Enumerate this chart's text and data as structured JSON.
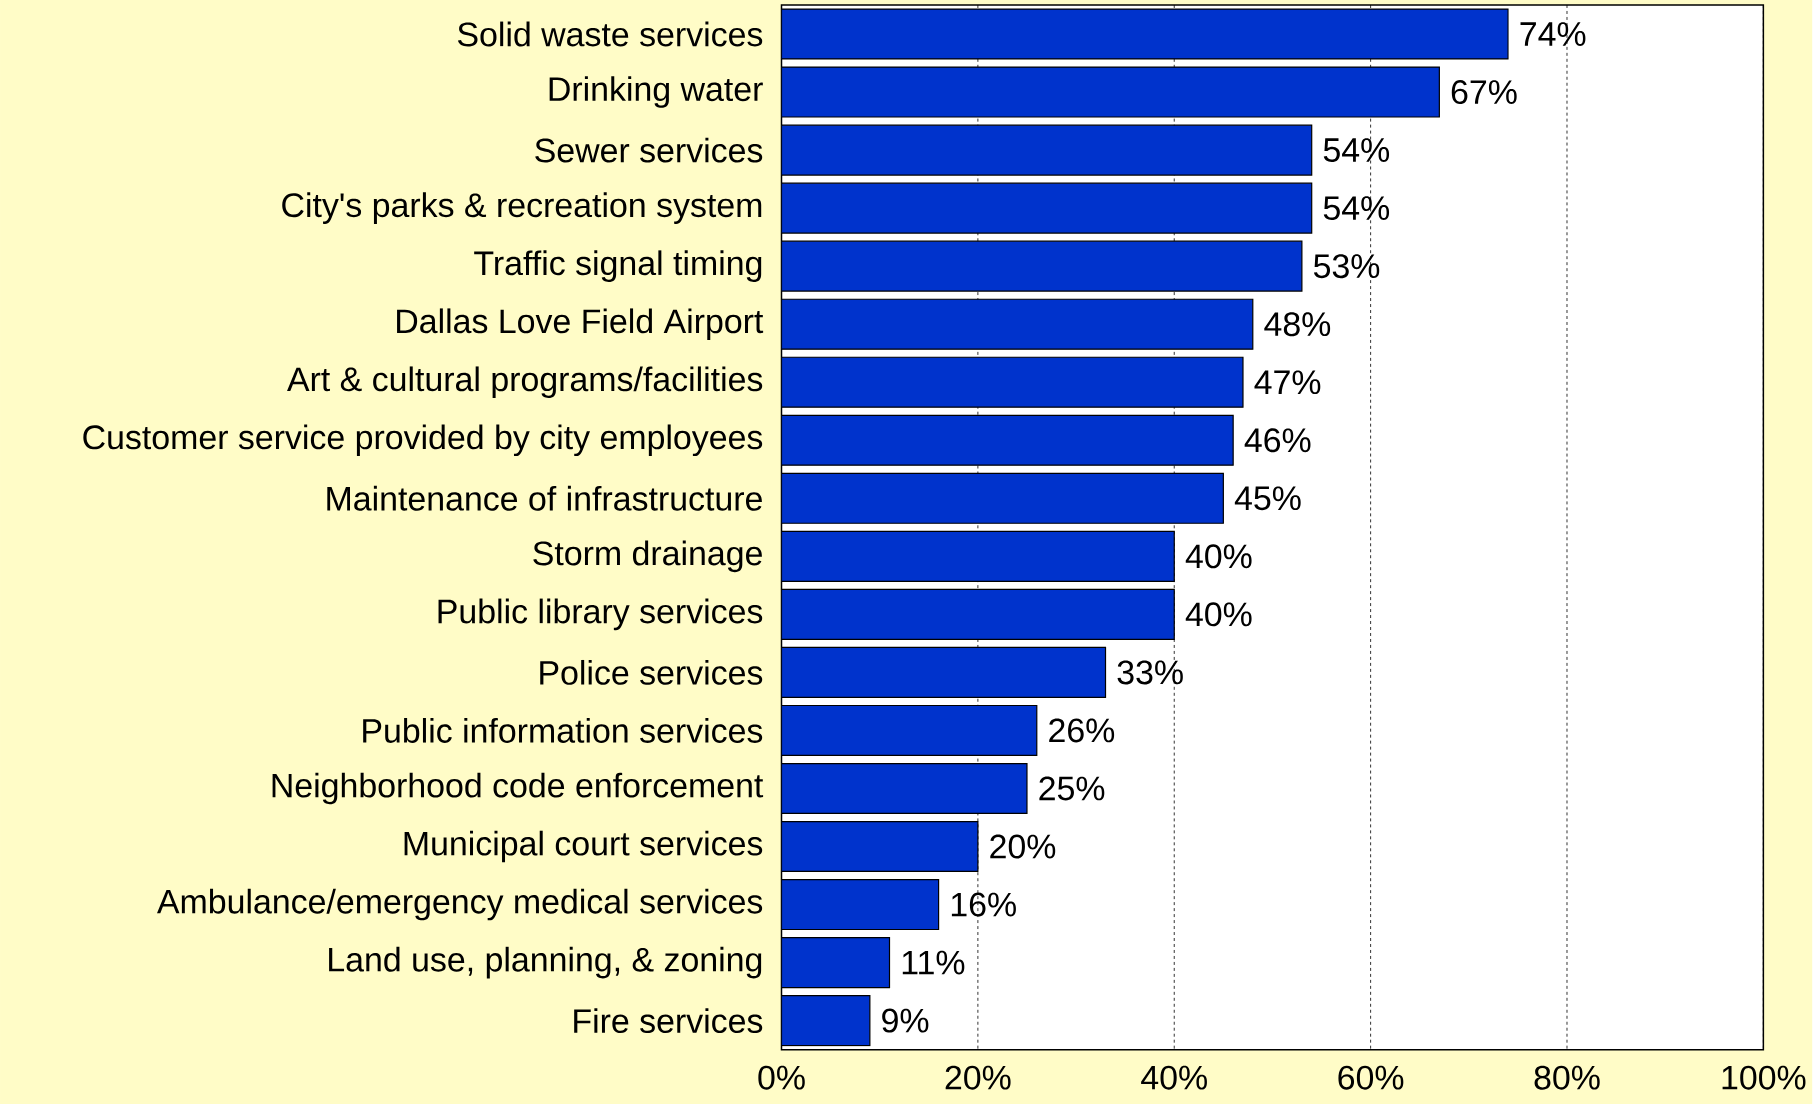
{
  "chart_data": {
    "type": "bar",
    "orientation": "horizontal",
    "color": "#0033cc",
    "categories": [
      "Solid waste services",
      "Drinking water",
      "Sewer services",
      "City's parks & recreation system",
      "Traffic signal timing",
      "Dallas Love Field Airport",
      "Art & cultural programs/facilities",
      "Customer service provided by city employees",
      "Maintenance of infrastructure",
      "Storm drainage",
      "Public library services",
      "Police services",
      "Public information services",
      "Neighborhood code enforcement",
      "Municipal court services",
      "Ambulance/emergency medical services",
      "Land use, planning, & zoning",
      "Fire services"
    ],
    "values": [
      74,
      67,
      54,
      54,
      53,
      48,
      47,
      46,
      45,
      40,
      40,
      33,
      26,
      25,
      20,
      16,
      11,
      9
    ],
    "value_labels": [
      "74%",
      "67%",
      "54%",
      "54%",
      "53%",
      "48%",
      "47%",
      "46%",
      "45%",
      "40%",
      "40%",
      "33%",
      "26%",
      "25%",
      "20%",
      "16%",
      "11%",
      "9%"
    ],
    "xlim": [
      0,
      100
    ],
    "xticks": [
      {
        "value": 0,
        "label": "0%"
      },
      {
        "value": 20,
        "label": "20%"
      },
      {
        "value": 40,
        "label": "40%"
      },
      {
        "value": 60,
        "label": "60%"
      },
      {
        "value": 80,
        "label": "80%"
      },
      {
        "value": 100,
        "label": "100%"
      }
    ],
    "grid": "x"
  }
}
